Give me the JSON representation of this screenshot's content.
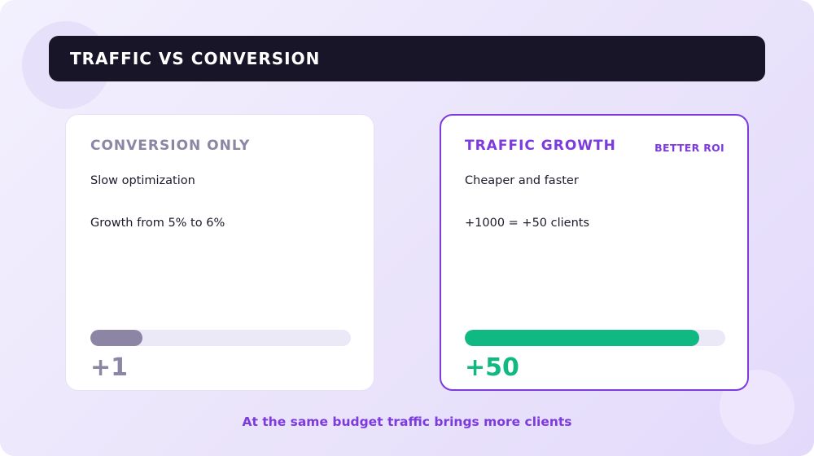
{
  "header": {
    "title": "TRAFFIC VS CONVERSION"
  },
  "cards": [
    {
      "title": "CONVERSION ONLY",
      "line1": "Slow optimization",
      "line2": "Growth from 5% to 6%",
      "progress": 0.2,
      "value": "+1",
      "color": "#8c86a4"
    },
    {
      "title": "TRAFFIC GROWTH",
      "badge": "BETTER ROI",
      "line1": "Cheaper and faster",
      "line2": "+1000 = +50 clients",
      "progress": 0.9,
      "value": "+50",
      "color": "#10b981"
    }
  ],
  "footer": {
    "text": "At the same budget traffic brings more clients"
  },
  "colors": {
    "accent": "#7c3adf",
    "dark": "#171527",
    "muted": "#8c86a4",
    "green": "#10b981"
  }
}
